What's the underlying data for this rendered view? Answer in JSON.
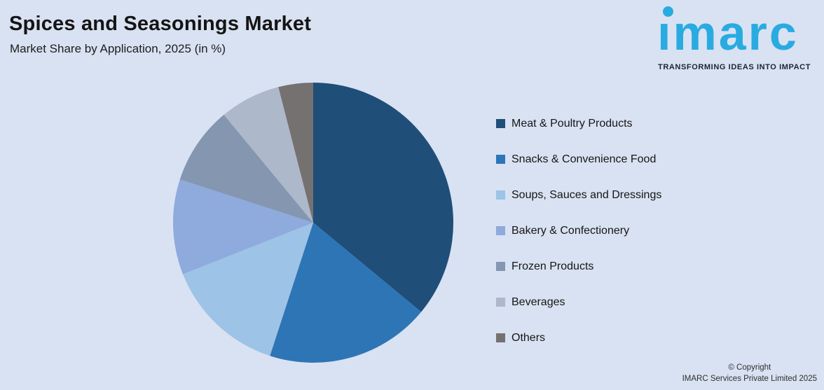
{
  "header": {
    "title": "Spices and Seasonings Market",
    "subtitle": "Market Share by Application, 2025 (in %)"
  },
  "logo": {
    "brand": "imarc",
    "brand_dotless": "ımarc",
    "tagline": "TRANSFORMING IDEAS INTO IMPACT",
    "brand_color": "#29ABE2",
    "tagline_color": "#1C2335"
  },
  "chart_data": {
    "type": "pie",
    "title": "Spices and Seasonings Market",
    "subtitle": "Market Share by Application, 2025 (in %)",
    "labels": [
      "Meat & Poultry Products",
      "Snacks & Convenience Food",
      "Soups, Sauces and Dressings",
      "Bakery & Confectionery",
      "Frozen Products",
      "Beverages",
      "Others"
    ],
    "values": [
      36,
      19,
      14,
      11,
      9,
      7,
      4
    ],
    "colors": [
      "#1F4E79",
      "#2E75B6",
      "#9DC3E6",
      "#8FAADC",
      "#8496B0",
      "#ADB9CA",
      "#767171"
    ],
    "start_angle_deg": 0,
    "direction": "clockwise",
    "legend_position": "right",
    "value_labels_shown": false,
    "background": "#D9E2F2"
  },
  "footer": {
    "line1": "© Copyright",
    "line2": "IMARC Services Private Limited 2025"
  }
}
